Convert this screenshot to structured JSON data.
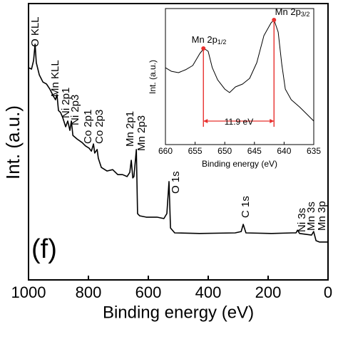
{
  "chart_data": [
    {
      "type": "line",
      "x_label": "Binding energy (eV)",
      "y_label": "Int. (a.u.)",
      "xlim": [
        1000,
        0
      ],
      "xticks": [
        1000,
        800,
        600,
        400,
        200,
        0
      ],
      "ylim": [
        0,
        100
      ],
      "x": [
        1000,
        990,
        983,
        978,
        974,
        964,
        952,
        940,
        929,
        917,
        910,
        905,
        900,
        893,
        886,
        876,
        869,
        862,
        857,
        852,
        838,
        821,
        810,
        798,
        790,
        783,
        779,
        771,
        767,
        757,
        738,
        719,
        702,
        686,
        671,
        662,
        657,
        652,
        648,
        640,
        636,
        629,
        607,
        571,
        548,
        538,
        531,
        526,
        512,
        429,
        310,
        290,
        283,
        274,
        190,
        119,
        107,
        102,
        95,
        55,
        48,
        40,
        29,
        0
      ],
      "series": [
        {
          "color": "#000000",
          "values": [
            76.8,
            76.3,
            79.4,
            85.3,
            78.6,
            74.2,
            71.6,
            70.9,
            69.1,
            66.5,
            65.2,
            67,
            61.3,
            60.6,
            58.8,
            55.4,
            57.5,
            54.1,
            57.5,
            52.3,
            51,
            49.7,
            48.5,
            47.7,
            46.6,
            49.2,
            45.9,
            47.2,
            44,
            40.7,
            39.4,
            39.9,
            38.1,
            38.1,
            37.4,
            38.9,
            43.3,
            36.9,
            37.4,
            47.2,
            24,
            23.2,
            22.7,
            22.7,
            22.2,
            24,
            35.6,
            18.8,
            17,
            16.8,
            17,
            17.5,
            20.1,
            17,
            16.8,
            17,
            17,
            18,
            16.8,
            16.2,
            17.5,
            14.2,
            13.7,
            13.7
          ]
        }
      ],
      "annotations": [
        "O KLL",
        "Mn KLL",
        "Ni 2p1",
        "Ni 2p3",
        "Co 2p1",
        "Co 2p3",
        "Mn 2p1",
        "Mn 2p3",
        "O 1s",
        "C 1s",
        "Ni 3s",
        "Mn 3s",
        "Mn 3p"
      ],
      "panel_label": "(f)"
    },
    {
      "type": "line",
      "x_label": "Binding energy (eV)",
      "y_label": "Int. (a.u.)",
      "xlim": [
        660,
        635
      ],
      "xticks": [
        660,
        655,
        650,
        645,
        640,
        635
      ],
      "ylim": [
        0,
        100
      ],
      "x": [
        660,
        659,
        657.8,
        656.6,
        655.4,
        654.2,
        653.5,
        652.8,
        652.1,
        651.2,
        650,
        649.2,
        648.2,
        647,
        645.8,
        644.6,
        643.4,
        642.2,
        641.7,
        641,
        640.4,
        639.8,
        638.8,
        637.4,
        636.2,
        635
      ],
      "series": [
        {
          "color": "#000000",
          "values": [
            56.5,
            53.9,
            52.9,
            55,
            58.1,
            67,
            70.7,
            68.6,
            56.5,
            47.6,
            40.8,
            38.2,
            42.4,
            44.5,
            48.7,
            60.2,
            80.1,
            89.5,
            91.6,
            82.7,
            59.2,
            40.8,
            33,
            27.7,
            22.5,
            17.3
          ]
        }
      ],
      "annotations": [
        {
          "text": "Mn 2p",
          "sub": "1/2"
        },
        {
          "text": "Mn 2p",
          "sub": "3/2"
        }
      ],
      "markers": {
        "color": "#e8312f",
        "x": [
          653.6,
          641.7
        ],
        "y": [
          70.7,
          91.6
        ]
      },
      "span_label": "11.9 eV"
    }
  ]
}
